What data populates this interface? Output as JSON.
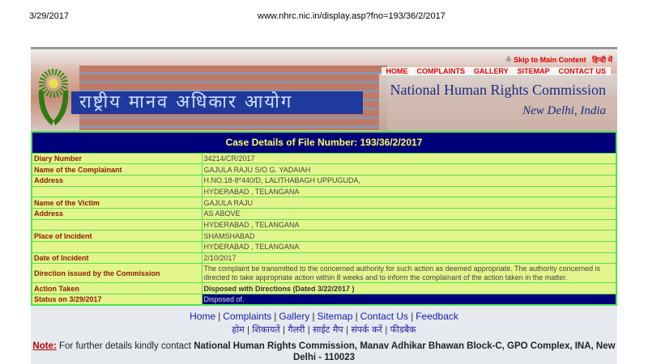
{
  "print_header": {
    "date": "3/29/2017",
    "url": "www.nhrc.nic.in/display.asp?fno=193/36/2/2017"
  },
  "banner": {
    "skip": "Skip to Main Content",
    "hindi_link": "हिन्दी में",
    "nav": [
      "HOME",
      "COMPLAINTS",
      "GALLERY",
      "SITEMAP",
      "CONTACT US"
    ],
    "hindi_title": "राष्ट्रीय मानव अधिकार आयोग",
    "org_name": "National Human Rights Commission",
    "city": "New Delhi, India"
  },
  "case": {
    "title": "Case Details of File Number: 193/36/2/2017",
    "rows": [
      {
        "label": "Diary Number",
        "value": "34214/CR/2017"
      },
      {
        "label": "Name of the Complainant",
        "value": "GAJULA RAJU S/O G. YADAIAH"
      },
      {
        "label": "Address",
        "value": "H.NO.18-8*440/D, LALITHABAGH UPPUGUDA,"
      },
      {
        "label": "",
        "value": "HYDERABAD , TELANGANA"
      },
      {
        "label": "Name of the Victim",
        "value": "GAJULA RAJU"
      },
      {
        "label": "Address",
        "value": "AS ABOVE"
      },
      {
        "label": "",
        "value": "HYDERABAD , TELANGANA"
      },
      {
        "label": "Place of Incident",
        "value": "SHAMSHABAD"
      },
      {
        "label": "",
        "value": "HYDERABAD , TELANGANA"
      },
      {
        "label": "Date of Incident",
        "value": "2/10/2017"
      },
      {
        "label": "Direction issued by the Commission",
        "value": "The complaint be transmitted to the concerned authority for such action as deemed appropriate. The authority concerned is directed to take appropriate action within 8 weeks and to inform the complainant of the action taken in the matter."
      },
      {
        "label": "Action Taken",
        "value": "Disposed with Directions (Dated 3/22/2017 )"
      },
      {
        "label": "Status on 3/29/2017",
        "value": "Disposed of."
      }
    ]
  },
  "footer": {
    "links": [
      "Home",
      "Complaints",
      "Gallery",
      "Sitemap",
      "Contact Us",
      "Feedback"
    ],
    "hindi_links": [
      "होम",
      "शिकायतें",
      "गैलरी",
      "साईट मैप",
      "संपर्क करें",
      "फीडबैक"
    ],
    "note_label": "Note:",
    "note_text": "For further details kindly contact",
    "note_address": "National Human Rights Commission, Manav Adhikar Bhawan Block-C, GPO Complex, INA, New Delhi - 110023"
  }
}
